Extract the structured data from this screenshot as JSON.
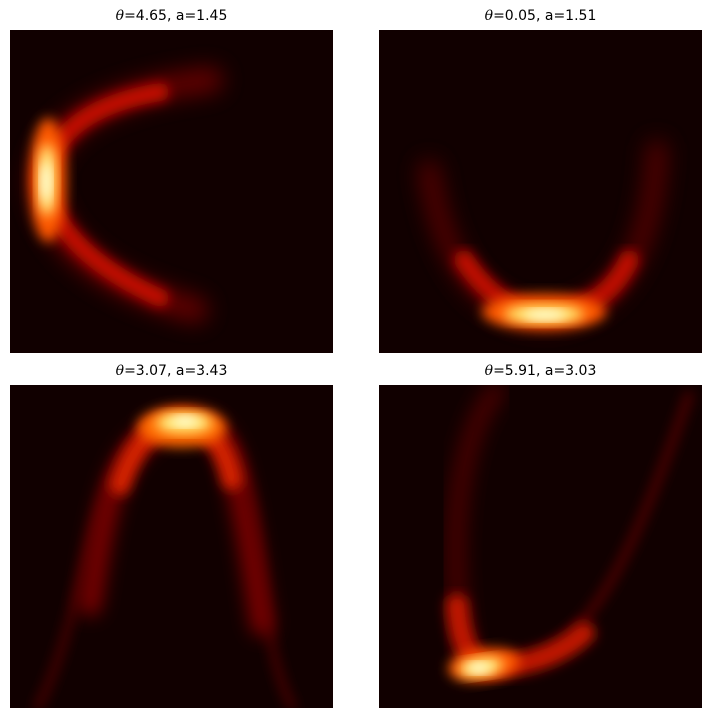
{
  "figure": {
    "colormap": "hot",
    "background_color": "#110000"
  },
  "chart_data": [
    {
      "type": "heatmap",
      "title_symbol": "θ",
      "title_rest": "=4.65, a=1.45",
      "theta": 4.65,
      "a": 1.45,
      "shape": "crescent opening to the right",
      "xticks": [],
      "yticks": [],
      "xlabel": "",
      "ylabel": ""
    },
    {
      "type": "heatmap",
      "title_symbol": "θ",
      "title_rest": "=0.05, a=1.51",
      "theta": 0.05,
      "a": 1.51,
      "shape": "cup opening upward",
      "xticks": [],
      "yticks": [],
      "xlabel": "",
      "ylabel": ""
    },
    {
      "type": "heatmap",
      "title_symbol": "θ",
      "title_rest": "=3.07, a=3.43",
      "theta": 3.07,
      "a": 3.43,
      "shape": "arch opening downward",
      "xticks": [],
      "yticks": [],
      "xlabel": "",
      "ylabel": ""
    },
    {
      "type": "heatmap",
      "title_symbol": "θ",
      "title_rest": "=5.91, a=3.03",
      "theta": 5.91,
      "a": 3.03,
      "shape": "asymmetric cup, peak lower-left",
      "xticks": [],
      "yticks": [],
      "xlabel": "",
      "ylabel": ""
    }
  ]
}
